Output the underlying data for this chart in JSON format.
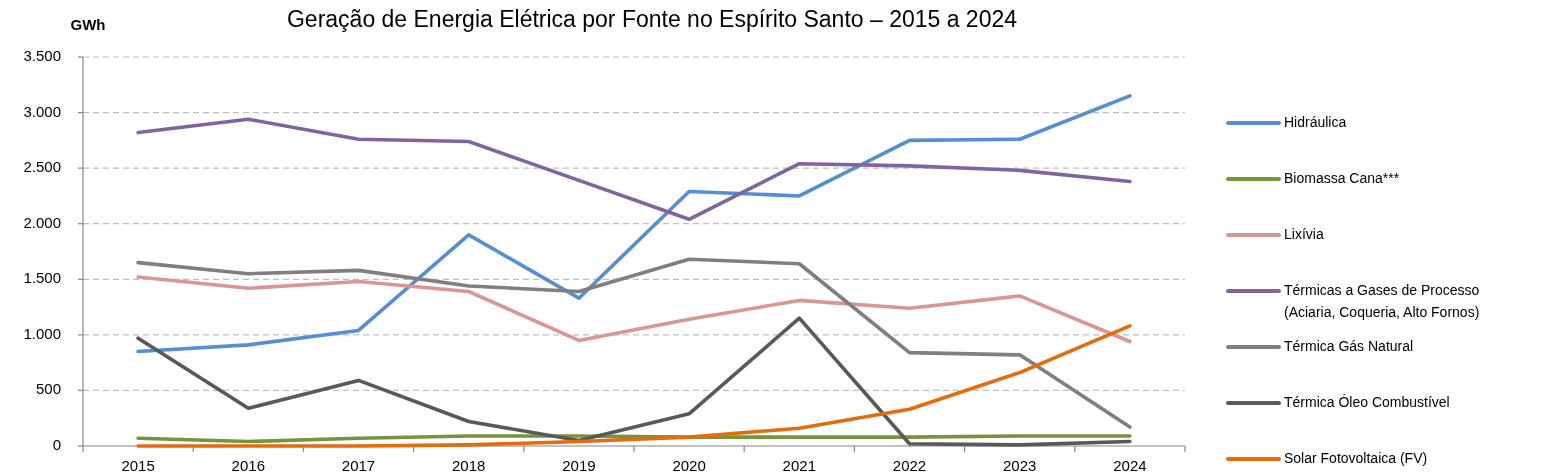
{
  "chart_data": {
    "type": "line",
    "title": "Geração de Energia Elétrica por Fonte no Espírito Santo – 2015 a 2024",
    "ylabel": "GWh",
    "categories": [
      "2015",
      "2016",
      "2017",
      "2018",
      "2019",
      "2020",
      "2021",
      "2022",
      "2023",
      "2024"
    ],
    "series": [
      {
        "name": "Hidráulica",
        "color": "#558ed5",
        "values": [
          850,
          910,
          1040,
          1900,
          1330,
          2290,
          2250,
          2750,
          2760,
          3150
        ]
      },
      {
        "name": "Biomassa Cana***",
        "color": "#77933c",
        "values": [
          70,
          40,
          70,
          90,
          90,
          80,
          80,
          80,
          90,
          90
        ]
      },
      {
        "name": "Lixívia",
        "color": "#d99694",
        "values": [
          1520,
          1420,
          1480,
          1390,
          950,
          1140,
          1310,
          1240,
          1350,
          940
        ]
      },
      {
        "name": "Térmicas a Gases de Processo (Aciaria, Coqueria, Alto Fornos)",
        "color": "#8064a2",
        "values": [
          2820,
          2940,
          2760,
          2740,
          2390,
          2040,
          2540,
          2520,
          2480,
          2380
        ]
      },
      {
        "name": "Térmica Gás Natural",
        "color": "#7f7f7f",
        "values": [
          1650,
          1550,
          1580,
          1440,
          1390,
          1680,
          1640,
          840,
          820,
          170
        ]
      },
      {
        "name": "Térmica Óleo Combustível",
        "color": "#595959",
        "values": [
          970,
          340,
          590,
          220,
          50,
          290,
          1150,
          20,
          10,
          40
        ]
      },
      {
        "name": "Solar Fotovoltaica (FV)",
        "color": "#e46c0a",
        "values": [
          0,
          0,
          0,
          10,
          40,
          80,
          160,
          330,
          660,
          1080
        ]
      }
    ],
    "ylim": [
      0,
      3500
    ],
    "yticks": [
      0,
      500,
      {
        "value": 1000,
        "label": "1.000"
      },
      {
        "value": 1500,
        "label": "1.500"
      },
      {
        "value": 2000,
        "label": "2.000"
      },
      {
        "value": 2500,
        "label": "2.500"
      },
      {
        "value": 3000,
        "label": "3.000"
      },
      {
        "value": 3500,
        "label": "3.500"
      }
    ],
    "grid": "y",
    "legend": "right"
  }
}
